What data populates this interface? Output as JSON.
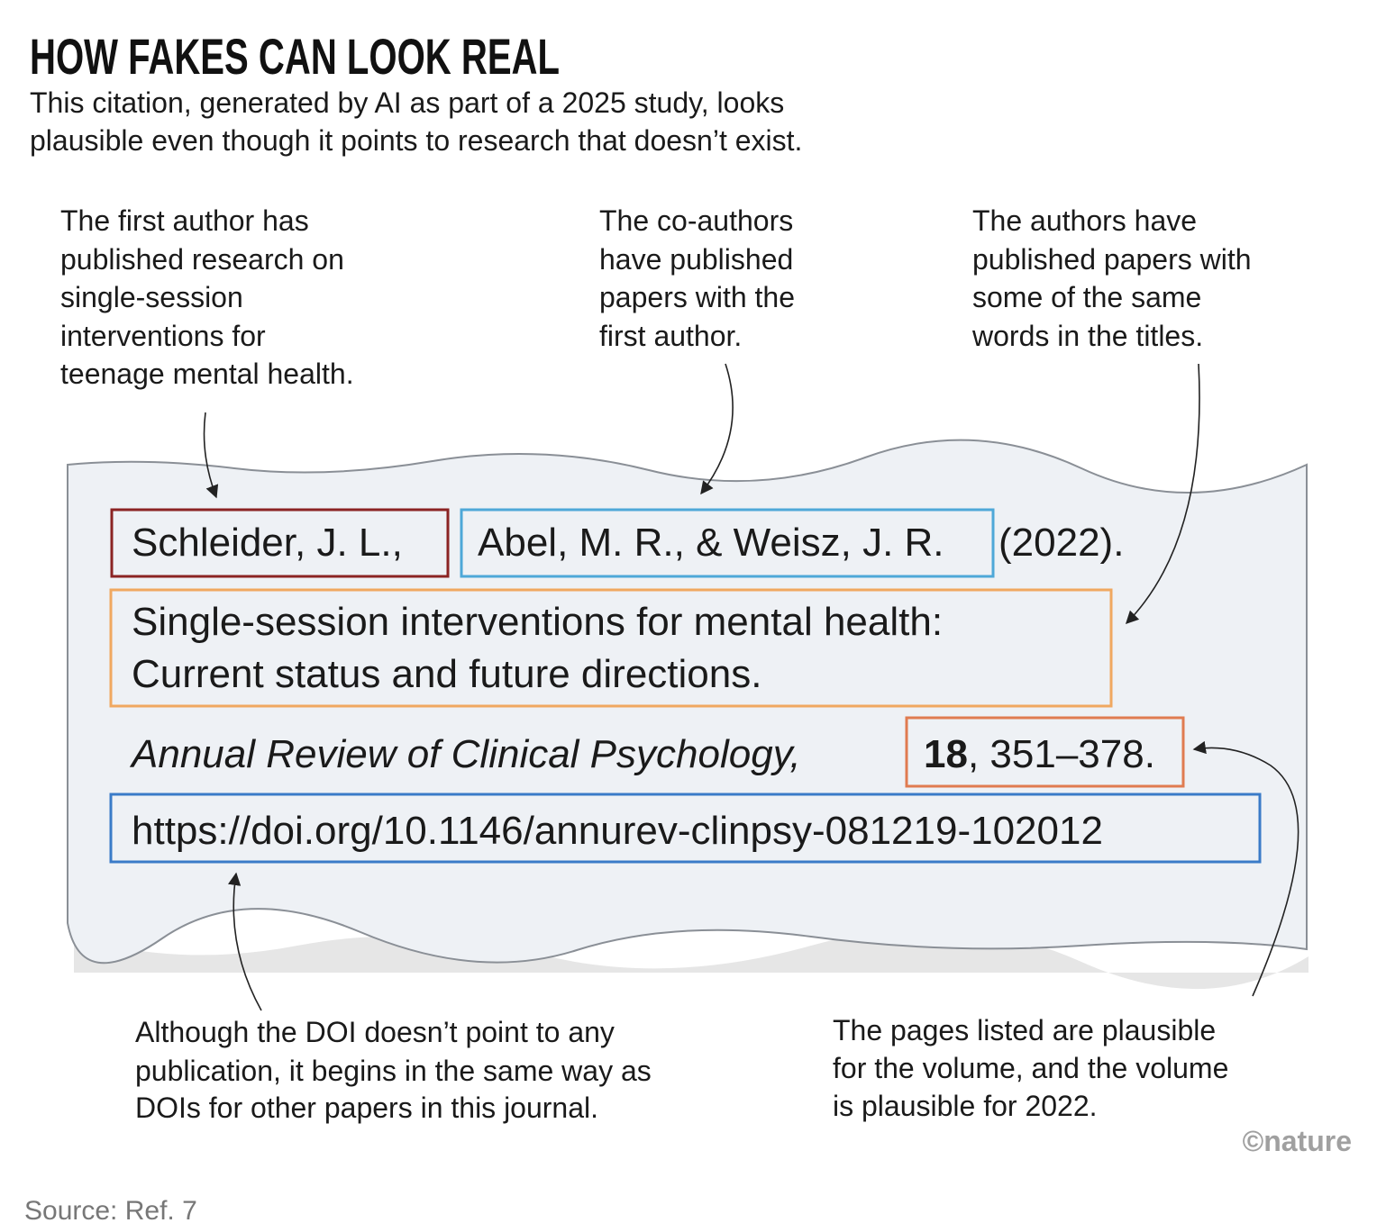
{
  "header": {
    "title": "HOW FAKES CAN LOOK REAL",
    "subtitle": [
      "This citation, generated by AI as part of a 2025 study, looks",
      "plausible even though it points to research that doesn’t exist."
    ]
  },
  "annotations": [
    {
      "lines": [
        "The first author has",
        "published research on",
        "single-session",
        "interventions for",
        "teenage mental health."
      ]
    },
    {
      "lines": [
        "The co-authors",
        "have published",
        "papers with the",
        "first author."
      ]
    },
    {
      "lines": [
        "The authors have",
        "published papers with",
        "some of the same",
        "words in the titles."
      ]
    },
    {
      "lines": [
        "Although the DOI doesn’t point to any",
        "publication, it begins in the same way as",
        "DOIs for other papers in this journal."
      ]
    },
    {
      "lines": [
        "The pages listed are plausible",
        "for the volume, and the volume",
        "is plausible for 2022."
      ]
    }
  ],
  "citation": {
    "first_author": "Schleider, J. L.,",
    "coauthors": "Abel, M. R., & Weisz, J. R.",
    "year": "(2022).",
    "title": [
      "Single-session interventions for mental health:",
      "Current status and future directions."
    ],
    "journal": "Annual Review of Clinical Psychology,",
    "volume": "18",
    "pages": ", 351–378.",
    "doi": "https://doi.org/10.1146/annurev-clinpsy-081219-102012"
  },
  "credit": "©nature",
  "source": "Source: Ref. 7"
}
